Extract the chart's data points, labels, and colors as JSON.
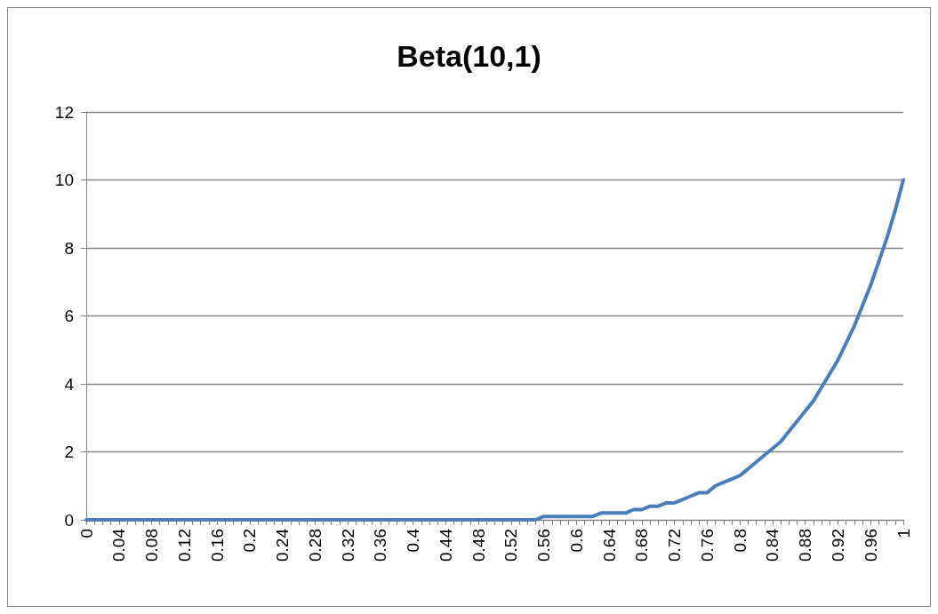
{
  "chart_data": {
    "type": "line",
    "title": "Beta(10,1)",
    "categories": [
      "0",
      null,
      null,
      null,
      "0.04",
      null,
      null,
      null,
      "0.08",
      null,
      null,
      null,
      "0.12",
      null,
      null,
      null,
      "0.16",
      null,
      null,
      null,
      "0.2",
      null,
      null,
      null,
      "0.24",
      null,
      null,
      null,
      "0.28",
      null,
      null,
      null,
      "0.32",
      null,
      null,
      null,
      "0.36",
      null,
      null,
      null,
      "0.4",
      null,
      null,
      null,
      "0.44",
      null,
      null,
      null,
      "0.48",
      null,
      null,
      null,
      "0.52",
      null,
      null,
      null,
      "0.56",
      null,
      null,
      null,
      "0.6",
      null,
      null,
      null,
      "0.64",
      null,
      null,
      null,
      "0.68",
      null,
      null,
      null,
      "0.72",
      null,
      null,
      null,
      "0.76",
      null,
      null,
      null,
      "0.8",
      null,
      null,
      null,
      "0.84",
      null,
      null,
      null,
      "0.88",
      null,
      null,
      null,
      "0.92",
      null,
      null,
      null,
      "0.96",
      null,
      null,
      null,
      "1"
    ],
    "series": [
      {
        "color": "#4a7ebb",
        "values": [
          0,
          0,
          0,
          0,
          0,
          0,
          0,
          0,
          0,
          0,
          0,
          0,
          0,
          0,
          0,
          0,
          0,
          0,
          0,
          0,
          0,
          0,
          0,
          0,
          0,
          0,
          0,
          0,
          0,
          0,
          0,
          0,
          0,
          0,
          0,
          0,
          0,
          0,
          0,
          0,
          0,
          0,
          0,
          0,
          0,
          0,
          0,
          0,
          0,
          0,
          0,
          0,
          0,
          0,
          0,
          0,
          0.1,
          0.1,
          0.1,
          0.1,
          0.1,
          0.1,
          0.1,
          0.2,
          0.2,
          0.2,
          0.2,
          0.3,
          0.3,
          0.4,
          0.4,
          0.5,
          0.5,
          0.6,
          0.7,
          0.8,
          0.8,
          1.0,
          1.1,
          1.2,
          1.3,
          1.5,
          1.7,
          1.9,
          2.1,
          2.3,
          2.6,
          2.9,
          3.2,
          3.5,
          3.9,
          4.3,
          4.7,
          5.2,
          5.7,
          6.3,
          6.9,
          7.6,
          8.3,
          9.1,
          10
        ]
      }
    ],
    "ylim": [
      0,
      12
    ],
    "yticks": [
      0,
      2,
      4,
      6,
      8,
      10,
      12
    ],
    "grid": "y",
    "marker": "none",
    "line_style": "solid"
  }
}
